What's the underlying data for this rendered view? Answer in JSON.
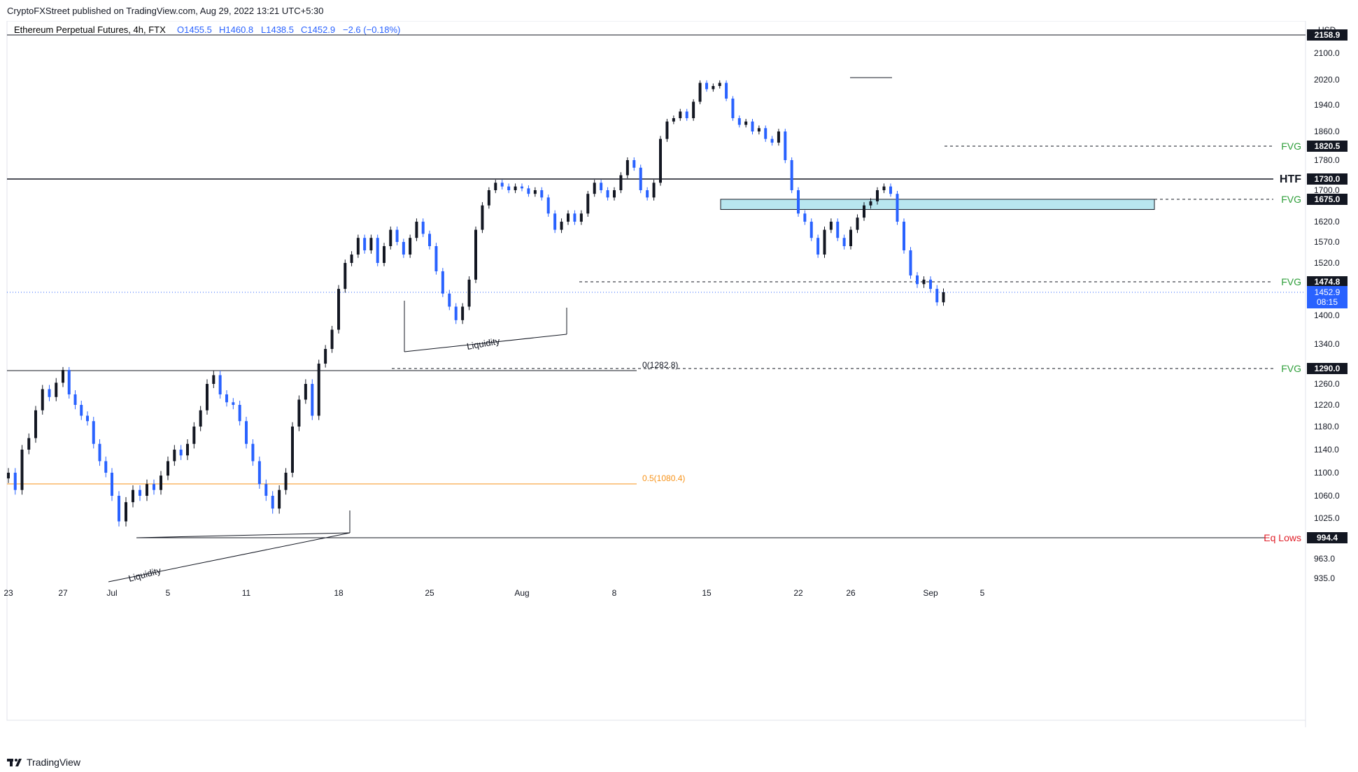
{
  "header": {
    "published": "CryptoFXStreet published on TradingView.com, Aug 29, 2022 13:21 UTC+5:30"
  },
  "legend": {
    "symbol": "Ethereum Perpetual Futures, 4h, FTX",
    "open": "O1455.5",
    "high": "H1460.8",
    "low": "L1438.5",
    "close": "C1452.9",
    "change": "−2.6 (−0.18%)"
  },
  "footer": {
    "brand": "TradingView"
  },
  "colors": {
    "up": "#131722",
    "down": "#2962ff",
    "fvg": "#2e9e3a",
    "fib05": "#f7931a",
    "eqlows": "#e0202a",
    "zone_fill": "#b8e6ef",
    "price_badge": "#2962ff"
  },
  "chart_data": {
    "type": "candlestick",
    "currency": "USD",
    "y_axis_ticks": [
      "2100.0",
      "2020.0",
      "1940.0",
      "1860.0",
      "1780.0",
      "1700.0",
      "1620.0",
      "1570.0",
      "1520.0",
      "1400.0",
      "1340.0",
      "1290.0",
      "1260.0",
      "1220.0",
      "1180.0",
      "1140.0",
      "1100.0",
      "1060.0",
      "1025.0",
      "963.0",
      "935.0"
    ],
    "y_tick_values": [
      2100,
      2020,
      1940,
      1860,
      1780,
      1700,
      1620,
      1570,
      1520,
      1400,
      1340,
      1290,
      1260,
      1220,
      1180,
      1140,
      1100,
      1060,
      1025,
      963,
      935
    ],
    "x_axis_ticks": [
      "23",
      "27",
      "Jul",
      "5",
      "11",
      "18",
      "25",
      "Aug",
      "8",
      "15",
      "22",
      "26",
      "Sep",
      "5"
    ],
    "x_axis_days": [
      0,
      4,
      8,
      12,
      18,
      25,
      32,
      39,
      46,
      53,
      60,
      64,
      70,
      74
    ],
    "price_labels": [
      {
        "value": 2158.9,
        "label": "2158.9",
        "style": "line"
      },
      {
        "value": 1820.5,
        "label": "1820.5",
        "style": "dashed",
        "tag": "FVG"
      },
      {
        "value": 1730.0,
        "label": "1730.0",
        "style": "line",
        "tag": "HTF"
      },
      {
        "value": 1675.0,
        "label": "1675.0",
        "style": "dashed",
        "tag": "FVG"
      },
      {
        "value": 1474.8,
        "label": "1474.8",
        "style": "dashed",
        "tag": "FVG"
      },
      {
        "value": 1290.0,
        "label": "1290.0",
        "style": "dashed",
        "tag": "FVG"
      },
      {
        "value": 994.4,
        "label": "994.4",
        "style": "line",
        "tag": "Eq Lows"
      }
    ],
    "last_price": {
      "value": 1452.9,
      "label": "1452.9",
      "countdown": "08:15"
    },
    "fib_levels": [
      {
        "label": "0(1282.8)",
        "value": 1282.8
      },
      {
        "label": "0.5(1080.4)",
        "value": 1080.4
      }
    ],
    "annotations": [
      {
        "text": "Liquidity",
        "near_day": 27
      },
      {
        "text": "Liquidity",
        "near_day": 9
      }
    ],
    "zone": {
      "from_day": 43.5,
      "to_day": 70,
      "low": 1650,
      "high": 1675
    },
    "closes": [
      {
        "d": 0,
        "c": 1100
      },
      {
        "d": 0.5,
        "c": 1070
      },
      {
        "d": 1,
        "c": 1140
      },
      {
        "d": 1.5,
        "c": 1160
      },
      {
        "d": 2,
        "c": 1210
      },
      {
        "d": 2.5,
        "c": 1250
      },
      {
        "d": 3,
        "c": 1235
      },
      {
        "d": 3.5,
        "c": 1262
      },
      {
        "d": 4,
        "c": 1285
      },
      {
        "d": 4.5,
        "c": 1240
      },
      {
        "d": 5,
        "c": 1220
      },
      {
        "d": 5.5,
        "c": 1200
      },
      {
        "d": 6,
        "c": 1190
      },
      {
        "d": 6.5,
        "c": 1150
      },
      {
        "d": 7,
        "c": 1120
      },
      {
        "d": 7.5,
        "c": 1100
      },
      {
        "d": 8,
        "c": 1060
      },
      {
        "d": 8.5,
        "c": 1020
      },
      {
        "d": 9,
        "c": 1050
      },
      {
        "d": 9.5,
        "c": 1070
      },
      {
        "d": 10,
        "c": 1060
      },
      {
        "d": 10.5,
        "c": 1080
      },
      {
        "d": 11,
        "c": 1070
      },
      {
        "d": 11.5,
        "c": 1095
      },
      {
        "d": 12,
        "c": 1120
      },
      {
        "d": 12.5,
        "c": 1140
      },
      {
        "d": 13,
        "c": 1130
      },
      {
        "d": 13.5,
        "c": 1150
      },
      {
        "d": 14,
        "c": 1180
      },
      {
        "d": 14.5,
        "c": 1210
      },
      {
        "d": 15,
        "c": 1260
      },
      {
        "d": 15.5,
        "c": 1275
      },
      {
        "d": 16,
        "c": 1240
      },
      {
        "d": 16.5,
        "c": 1225
      },
      {
        "d": 17,
        "c": 1220
      },
      {
        "d": 17.5,
        "c": 1190
      },
      {
        "d": 18,
        "c": 1150
      },
      {
        "d": 18.5,
        "c": 1120
      },
      {
        "d": 19,
        "c": 1080
      },
      {
        "d": 19.5,
        "c": 1060
      },
      {
        "d": 20,
        "c": 1040
      },
      {
        "d": 20.5,
        "c": 1070
      },
      {
        "d": 21,
        "c": 1100
      },
      {
        "d": 21.5,
        "c": 1180
      },
      {
        "d": 22,
        "c": 1230
      },
      {
        "d": 22.5,
        "c": 1260
      },
      {
        "d": 23,
        "c": 1200
      },
      {
        "d": 23.5,
        "c": 1300
      },
      {
        "d": 24,
        "c": 1330
      },
      {
        "d": 24.5,
        "c": 1370
      },
      {
        "d": 25,
        "c": 1460
      },
      {
        "d": 25.5,
        "c": 1520
      },
      {
        "d": 26,
        "c": 1540
      },
      {
        "d": 26.5,
        "c": 1580
      },
      {
        "d": 27,
        "c": 1550
      },
      {
        "d": 27.5,
        "c": 1580
      },
      {
        "d": 28,
        "c": 1520
      },
      {
        "d": 28.5,
        "c": 1560
      },
      {
        "d": 29,
        "c": 1600
      },
      {
        "d": 29.5,
        "c": 1570
      },
      {
        "d": 30,
        "c": 1540
      },
      {
        "d": 30.5,
        "c": 1580
      },
      {
        "d": 31,
        "c": 1620
      },
      {
        "d": 31.5,
        "c": 1590
      },
      {
        "d": 32,
        "c": 1560
      },
      {
        "d": 32.5,
        "c": 1500
      },
      {
        "d": 33,
        "c": 1450
      },
      {
        "d": 33.5,
        "c": 1420
      },
      {
        "d": 34,
        "c": 1390
      },
      {
        "d": 34.5,
        "c": 1420
      },
      {
        "d": 35,
        "c": 1480
      },
      {
        "d": 35.5,
        "c": 1600
      },
      {
        "d": 36,
        "c": 1660
      },
      {
        "d": 36.5,
        "c": 1700
      },
      {
        "d": 37,
        "c": 1720
      },
      {
        "d": 37.5,
        "c": 1710
      },
      {
        "d": 38,
        "c": 1700
      },
      {
        "d": 38.5,
        "c": 1710
      },
      {
        "d": 39,
        "c": 1705
      },
      {
        "d": 39.5,
        "c": 1690
      },
      {
        "d": 40,
        "c": 1700
      },
      {
        "d": 40.5,
        "c": 1680
      },
      {
        "d": 41,
        "c": 1640
      },
      {
        "d": 41.5,
        "c": 1600
      },
      {
        "d": 42,
        "c": 1620
      },
      {
        "d": 42.5,
        "c": 1640
      },
      {
        "d": 43,
        "c": 1620
      },
      {
        "d": 43.5,
        "c": 1640
      },
      {
        "d": 44,
        "c": 1690
      },
      {
        "d": 44.5,
        "c": 1720
      },
      {
        "d": 45,
        "c": 1700
      },
      {
        "d": 45.5,
        "c": 1680
      },
      {
        "d": 46,
        "c": 1700
      },
      {
        "d": 46.5,
        "c": 1740
      },
      {
        "d": 47,
        "c": 1780
      },
      {
        "d": 47.5,
        "c": 1760
      },
      {
        "d": 48,
        "c": 1700
      },
      {
        "d": 48.5,
        "c": 1680
      },
      {
        "d": 49,
        "c": 1720
      },
      {
        "d": 49.5,
        "c": 1840
      },
      {
        "d": 50,
        "c": 1890
      },
      {
        "d": 50.5,
        "c": 1900
      },
      {
        "d": 51,
        "c": 1920
      },
      {
        "d": 51.5,
        "c": 1900
      },
      {
        "d": 52,
        "c": 1950
      },
      {
        "d": 52.5,
        "c": 2010
      },
      {
        "d": 53,
        "c": 1990
      },
      {
        "d": 53.5,
        "c": 2000
      },
      {
        "d": 54,
        "c": 2010
      },
      {
        "d": 54.5,
        "c": 1960
      },
      {
        "d": 55,
        "c": 1900
      },
      {
        "d": 55.5,
        "c": 1880
      },
      {
        "d": 56,
        "c": 1890
      },
      {
        "d": 56.5,
        "c": 1860
      },
      {
        "d": 57,
        "c": 1870
      },
      {
        "d": 57.5,
        "c": 1840
      },
      {
        "d": 58,
        "c": 1830
      },
      {
        "d": 58.5,
        "c": 1860
      },
      {
        "d": 59,
        "c": 1780
      },
      {
        "d": 59.5,
        "c": 1700
      },
      {
        "d": 60,
        "c": 1640
      },
      {
        "d": 60.5,
        "c": 1620
      },
      {
        "d": 61,
        "c": 1580
      },
      {
        "d": 61.5,
        "c": 1540
      },
      {
        "d": 62,
        "c": 1600
      },
      {
        "d": 62.5,
        "c": 1620
      },
      {
        "d": 63,
        "c": 1580
      },
      {
        "d": 63.5,
        "c": 1560
      },
      {
        "d": 64,
        "c": 1600
      },
      {
        "d": 64.5,
        "c": 1630
      },
      {
        "d": 65,
        "c": 1660
      },
      {
        "d": 65.5,
        "c": 1670
      },
      {
        "d": 66,
        "c": 1700
      },
      {
        "d": 66.5,
        "c": 1710
      },
      {
        "d": 67,
        "c": 1690
      },
      {
        "d": 67.5,
        "c": 1620
      },
      {
        "d": 68,
        "c": 1550
      },
      {
        "d": 68.5,
        "c": 1490
      },
      {
        "d": 69,
        "c": 1470
      },
      {
        "d": 69.5,
        "c": 1480
      },
      {
        "d": 70,
        "c": 1460
      },
      {
        "d": 70.5,
        "c": 1430
      },
      {
        "d": 71,
        "c": 1452.9
      }
    ]
  }
}
